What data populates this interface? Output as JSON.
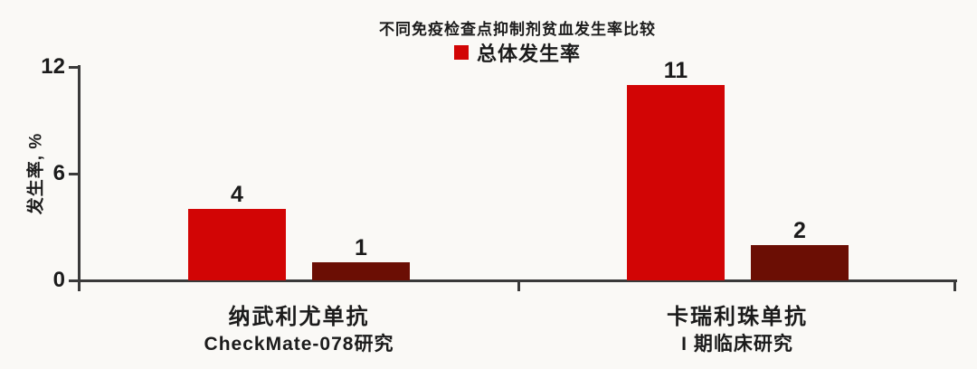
{
  "chart_data": {
    "type": "bar",
    "title": "不同免疫检查点抑制剂贫血发生率比较",
    "legend": [
      {
        "label": "总体发生率",
        "color": "#d20505",
        "position": "top-center"
      }
    ],
    "ylabel": "发生率, %",
    "ylim": [
      0,
      12
    ],
    "yticks": [
      0,
      6,
      12
    ],
    "grid": false,
    "colors": {
      "primary_bar": "#d20505",
      "secondary_bar": "#6b0e04",
      "axis": "#3a3a3a",
      "text": "#1b1b1b",
      "background": "#faf9f6"
    },
    "groups": [
      {
        "label": "纳武利尤单抗",
        "sublabel": "CheckMate-078研究",
        "bars": [
          {
            "value": 4,
            "color": "#d20505"
          },
          {
            "value": 1,
            "color": "#6b0e04"
          }
        ]
      },
      {
        "label": "卡瑞利珠单抗",
        "sublabel": "I 期临床研究",
        "bars": [
          {
            "value": 11,
            "color": "#d20505"
          },
          {
            "value": 2,
            "color": "#6b0e04"
          }
        ]
      }
    ]
  }
}
